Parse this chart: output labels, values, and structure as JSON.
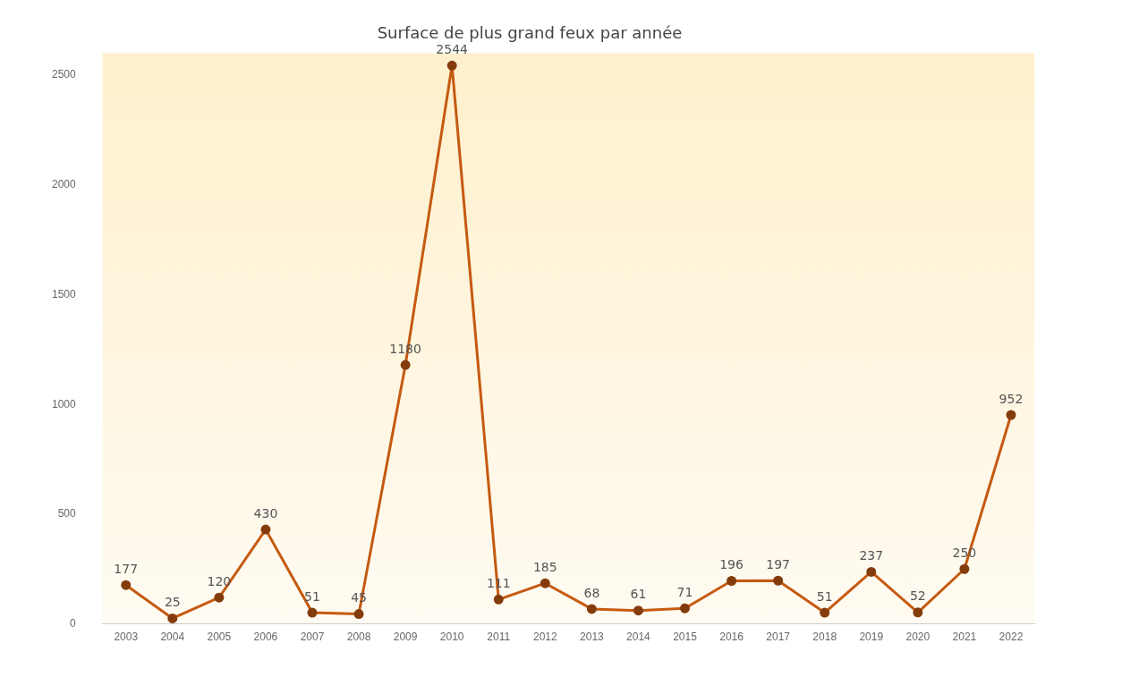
{
  "chart_data": {
    "type": "line",
    "title": "Surface de plus grand feux par année",
    "categories": [
      "2003",
      "2004",
      "2005",
      "2006",
      "2007",
      "2008",
      "2009",
      "2010",
      "2011",
      "2012",
      "2013",
      "2014",
      "2015",
      "2016",
      "2017",
      "2018",
      "2019",
      "2020",
      "2021",
      "2022"
    ],
    "series": [
      {
        "color": "#c55a11",
        "values": [
          177,
          25,
          120,
          430,
          51,
          45,
          1180,
          2544,
          111,
          185,
          68,
          61,
          71,
          196,
          197,
          51,
          237,
          52,
          250,
          952
        ]
      }
    ],
    "ylim": [
      0,
      2600
    ],
    "yticks": [
      0,
      500,
      1000,
      1500,
      2000,
      2500
    ],
    "grid": false,
    "legend": false,
    "marker": "circle",
    "line_style": "solid",
    "data_labels": true
  }
}
